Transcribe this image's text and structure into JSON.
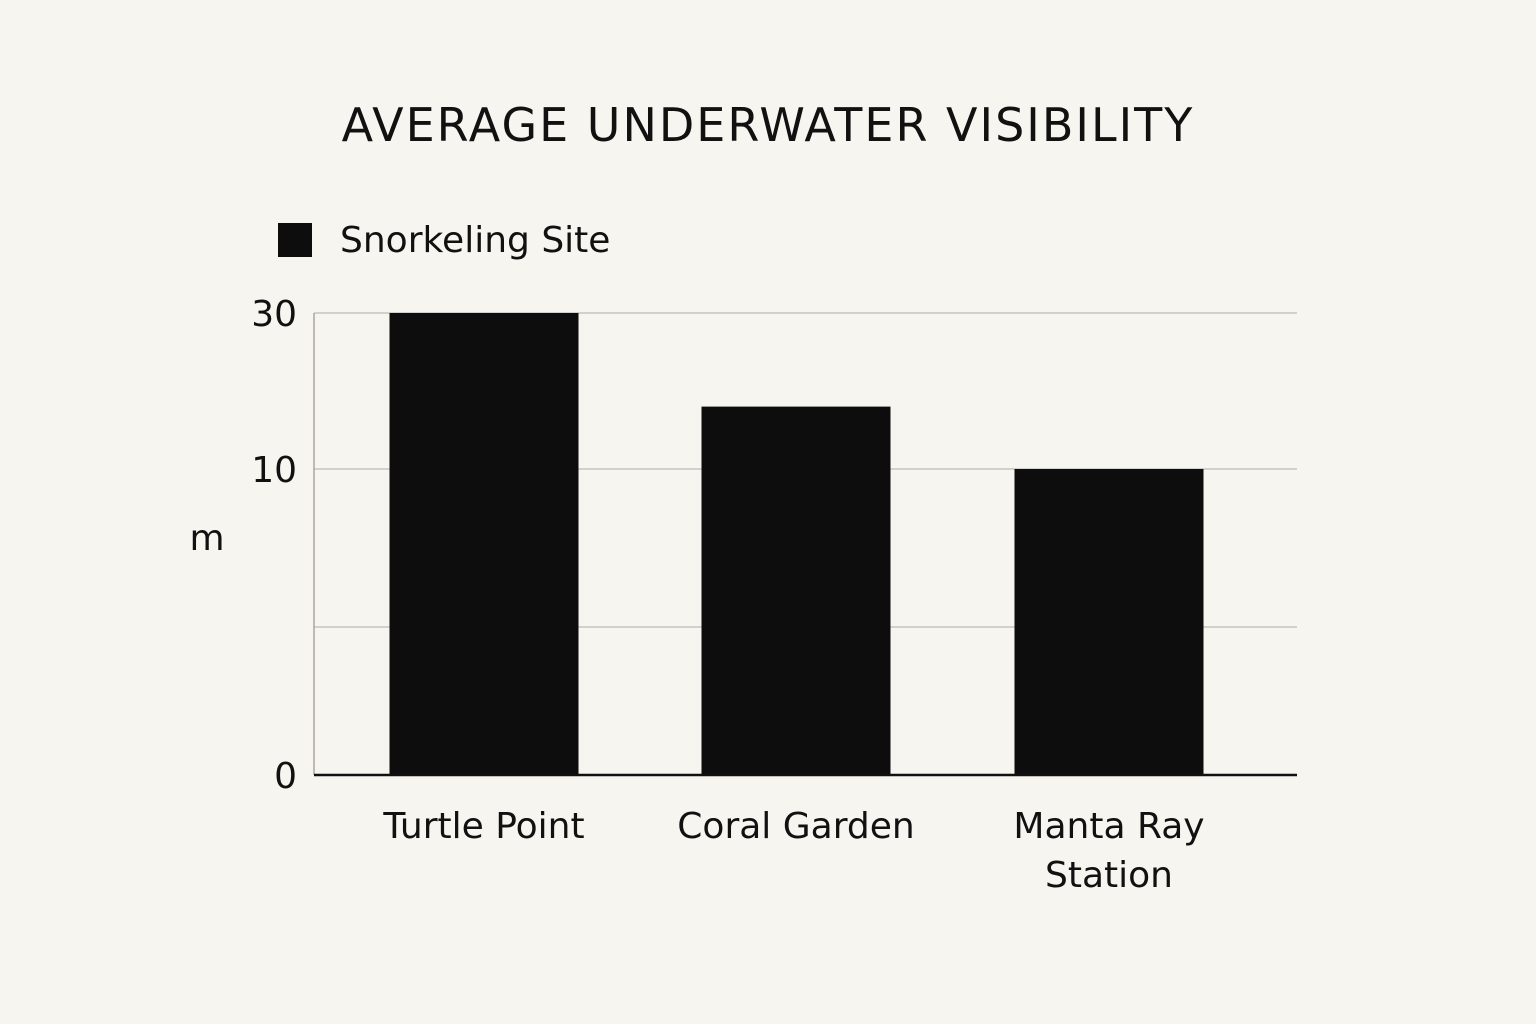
{
  "chart_data": {
    "type": "bar",
    "title": "AVERAGE UNDERWATER VISIBILITY",
    "ylabel": "m",
    "xlabel": "",
    "legend": {
      "position": "top-left",
      "entries": [
        "Snorkeling Site"
      ]
    },
    "categories": [
      "Turtle Point",
      "Coral Garden",
      "Manta Ray Station"
    ],
    "series": [
      {
        "name": "Snorkeling Site",
        "values": [
          30,
          18,
          10
        ],
        "color": "#0d0d0d"
      }
    ],
    "ylim": [
      0,
      30
    ],
    "yticks": [
      0,
      10,
      30
    ],
    "grid": true
  }
}
